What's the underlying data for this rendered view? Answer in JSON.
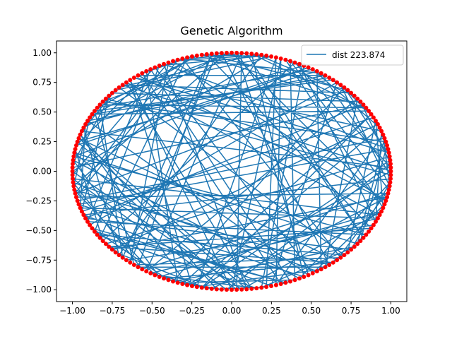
{
  "chart_data": {
    "type": "line",
    "title": "Genetic Algorithm",
    "xlabel": "",
    "ylabel": "",
    "xlim": [
      -1.1,
      1.1
    ],
    "ylim": [
      -1.1,
      1.1
    ],
    "x_ticks": [
      -1.0,
      -0.75,
      -0.5,
      -0.25,
      0.0,
      0.25,
      0.5,
      0.75,
      1.0
    ],
    "x_tick_labels": [
      "−1.00",
      "−0.75",
      "−0.50",
      "−0.25",
      "0.00",
      "0.25",
      "0.50",
      "0.75",
      "1.00"
    ],
    "y_ticks": [
      1.0,
      0.75,
      0.5,
      0.25,
      0.0,
      -0.25,
      -0.5,
      -0.75,
      -1.0
    ],
    "y_tick_labels": [
      "1.00",
      "0.75",
      "0.50",
      "0.25",
      "0.00",
      "−0.25",
      "−0.50",
      "−0.75",
      "−1.00"
    ],
    "grid": false,
    "legend": {
      "position": "top-right",
      "entries": [
        "dist 223.874"
      ]
    },
    "city_points": {
      "description_shape": "unit circle",
      "count": 200,
      "color": "#ff0000"
    },
    "route": {
      "name": "dist 223.874",
      "color": "#1f77b4",
      "visits_all_points": true,
      "closed": true,
      "seed": 7
    }
  }
}
